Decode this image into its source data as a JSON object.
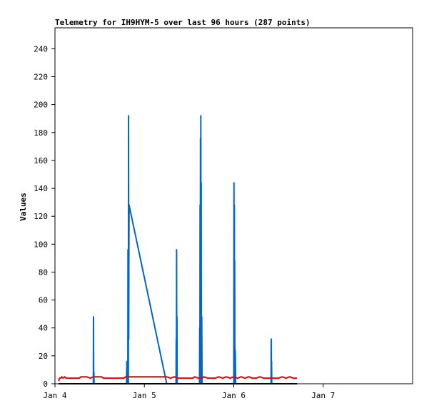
{
  "chart_data": {
    "type": "line",
    "title": "Telemetry for IH9HYM-5 over last 96 hours (287 points)",
    "xlabel": "",
    "ylabel": "Values",
    "ylim": [
      0,
      255
    ],
    "xlim": [
      0,
      96
    ],
    "yticks": [
      0,
      20,
      40,
      60,
      80,
      100,
      120,
      140,
      160,
      180,
      200,
      220,
      240
    ],
    "xticks": [
      {
        "x": 0,
        "label": "Jan 4"
      },
      {
        "x": 24,
        "label": "Jan 5"
      },
      {
        "x": 48,
        "label": "Jan 6"
      },
      {
        "x": 72,
        "label": "Jan 7"
      }
    ],
    "grid": false,
    "series": [
      {
        "color": "#0066cc",
        "points": [
          [
            1.0,
            0
          ],
          [
            10.0,
            0
          ],
          [
            10.3,
            0
          ],
          [
            10.35,
            48
          ],
          [
            10.4,
            0
          ],
          [
            10.45,
            8
          ],
          [
            10.5,
            0
          ],
          [
            19.2,
            0
          ],
          [
            19.3,
            16
          ],
          [
            19.4,
            0
          ],
          [
            19.55,
            0
          ],
          [
            19.6,
            96
          ],
          [
            19.7,
            0
          ],
          [
            19.75,
            192
          ],
          [
            19.8,
            32
          ],
          [
            19.85,
            96
          ],
          [
            19.9,
            128
          ],
          [
            30.0,
            0
          ],
          [
            32.5,
            0
          ],
          [
            32.55,
            32
          ],
          [
            32.6,
            0
          ],
          [
            32.65,
            96
          ],
          [
            32.7,
            0
          ],
          [
            32.75,
            48
          ],
          [
            32.8,
            0
          ],
          [
            38.8,
            0
          ],
          [
            38.85,
            40
          ],
          [
            38.9,
            0
          ],
          [
            38.95,
            128
          ],
          [
            39.0,
            0
          ],
          [
            39.05,
            176
          ],
          [
            39.1,
            80
          ],
          [
            39.15,
            192
          ],
          [
            39.2,
            64
          ],
          [
            39.25,
            144
          ],
          [
            39.3,
            0
          ],
          [
            39.4,
            48
          ],
          [
            39.5,
            0
          ],
          [
            48.0,
            0
          ],
          [
            48.05,
            144
          ],
          [
            48.1,
            0
          ],
          [
            48.15,
            128
          ],
          [
            48.2,
            40
          ],
          [
            48.25,
            88
          ],
          [
            48.3,
            0
          ],
          [
            48.4,
            24
          ],
          [
            48.5,
            0
          ],
          [
            58.0,
            0
          ],
          [
            58.05,
            32
          ],
          [
            58.1,
            0
          ],
          [
            58.15,
            16
          ],
          [
            58.2,
            0
          ],
          [
            65.0,
            0
          ]
        ]
      },
      {
        "color": "#ee0000",
        "points": [
          [
            1.0,
            2
          ],
          [
            1.2,
            4
          ],
          [
            1.6,
            4
          ],
          [
            1.8,
            5
          ],
          [
            2.2,
            4
          ],
          [
            2.6,
            5
          ],
          [
            3.0,
            4
          ],
          [
            4.0,
            4
          ],
          [
            5.0,
            4
          ],
          [
            6.5,
            4
          ],
          [
            7.0,
            5
          ],
          [
            8.5,
            5
          ],
          [
            9.5,
            4
          ],
          [
            10.3,
            5
          ],
          [
            11.0,
            5
          ],
          [
            12.5,
            5
          ],
          [
            13.0,
            4
          ],
          [
            16.0,
            4
          ],
          [
            17.0,
            4
          ],
          [
            18.5,
            4
          ],
          [
            19.0,
            5
          ],
          [
            21.0,
            5
          ],
          [
            24.0,
            5
          ],
          [
            27.0,
            5
          ],
          [
            30.0,
            5
          ],
          [
            31.0,
            4
          ],
          [
            32.0,
            5
          ],
          [
            33.0,
            4
          ],
          [
            35.0,
            4
          ],
          [
            37.0,
            4
          ],
          [
            37.5,
            5
          ],
          [
            38.5,
            4
          ],
          [
            39.5,
            4
          ],
          [
            40.0,
            5
          ],
          [
            41.0,
            4
          ],
          [
            43.0,
            4
          ],
          [
            44.0,
            5
          ],
          [
            45.0,
            4
          ],
          [
            46.0,
            5
          ],
          [
            47.0,
            4
          ],
          [
            48.0,
            5
          ],
          [
            49.0,
            4
          ],
          [
            50.0,
            5
          ],
          [
            51.0,
            4
          ],
          [
            52.0,
            5
          ],
          [
            53.0,
            4
          ],
          [
            54.0,
            4
          ],
          [
            55.0,
            5
          ],
          [
            56.0,
            4
          ],
          [
            58.0,
            4
          ],
          [
            60.0,
            4
          ],
          [
            61.0,
            5
          ],
          [
            62.0,
            4
          ],
          [
            63.0,
            5
          ],
          [
            64.0,
            4
          ],
          [
            65.0,
            4
          ]
        ]
      },
      {
        "color": "#000000",
        "points": [
          [
            1.0,
            0
          ],
          [
            65.0,
            0
          ]
        ]
      }
    ]
  }
}
